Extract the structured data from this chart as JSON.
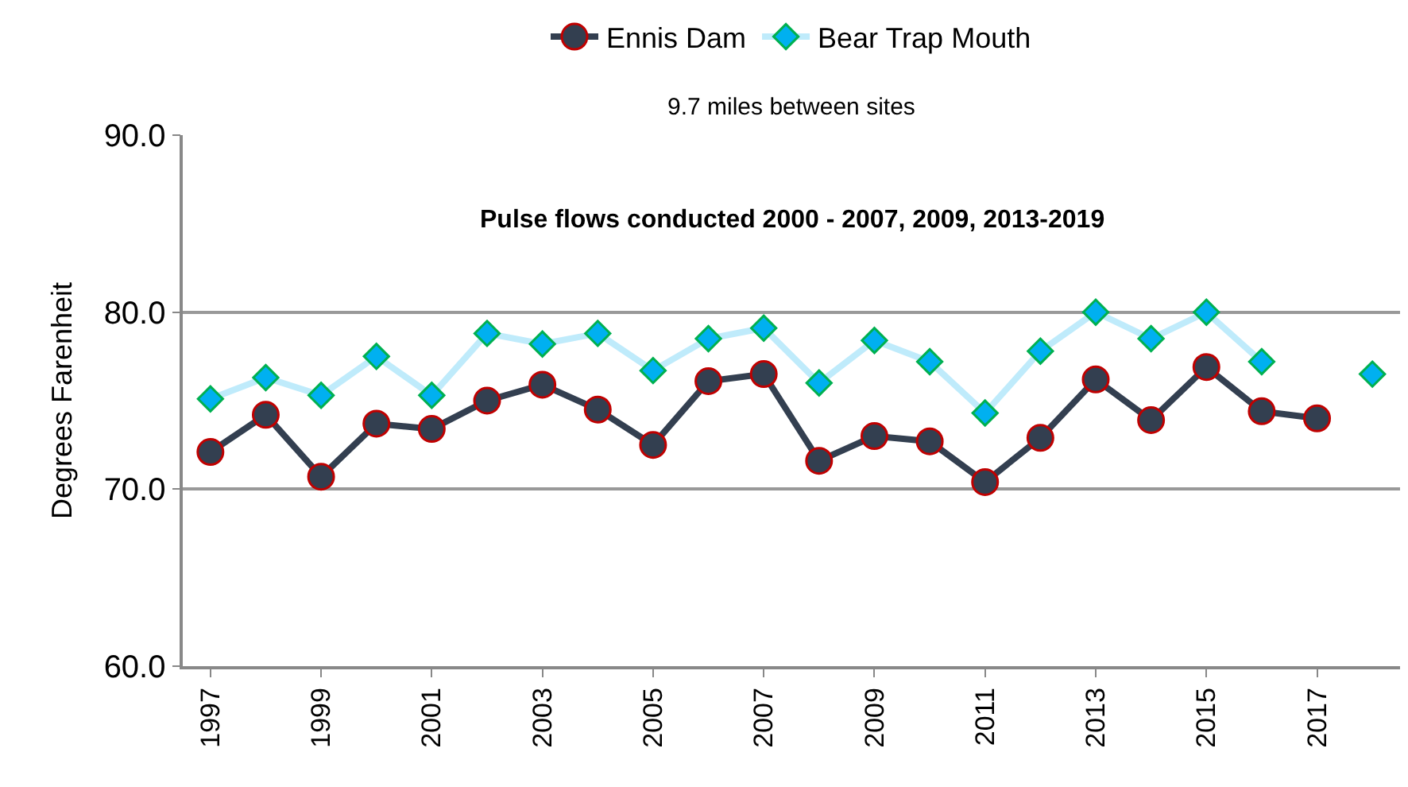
{
  "chart_data": {
    "type": "line",
    "subtitle": "9.7 miles between sites",
    "ylabel": "Degrees Farenheit",
    "annotations": [
      "Pulse flows conducted 2000 - 2007, 2009, 2013-2019"
    ],
    "categories": [
      "1997",
      null,
      "1999",
      null,
      "2001",
      null,
      "2003",
      null,
      "2005",
      null,
      "2007",
      null,
      "2009",
      null,
      "2011",
      null,
      "2013",
      null,
      "2015",
      null,
      "2017",
      null
    ],
    "series": [
      {
        "name": "Ennis Dam",
        "color": "#333f50",
        "marker": "circle",
        "values": [
          72.1,
          74.2,
          70.7,
          73.7,
          73.4,
          75.0,
          75.9,
          74.5,
          72.5,
          76.1,
          76.5,
          71.6,
          73.0,
          72.7,
          70.4,
          72.9,
          76.2,
          73.9,
          76.9,
          74.4,
          74.0,
          null
        ]
      },
      {
        "name": "Bear Trap Mouth",
        "color": "#00b0f0",
        "marker": "diamond",
        "values": [
          75.1,
          76.3,
          75.3,
          77.5,
          75.3,
          78.8,
          78.2,
          78.8,
          76.7,
          78.5,
          79.1,
          76.0,
          78.4,
          77.2,
          74.3,
          77.8,
          80.0,
          78.5,
          80.0,
          77.2,
          null,
          76.5
        ]
      }
    ],
    "ylim": [
      60,
      90
    ],
    "yticks": [
      {
        "value": 60,
        "label": "60.0"
      },
      {
        "value": 70,
        "label": "70.0"
      },
      {
        "value": 80,
        "label": "80.0"
      },
      {
        "value": 90,
        "label": "90.0"
      }
    ],
    "grid": "y",
    "legend": "top",
    "line_style": "solid"
  }
}
